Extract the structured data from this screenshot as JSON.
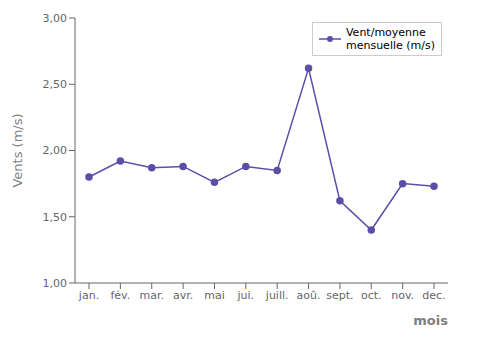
{
  "chart_data": {
    "type": "line",
    "categories": [
      "jan.",
      "fév.",
      "mar.",
      "avr.",
      "mai",
      "jui.",
      "juill.",
      "aoû.",
      "sept.",
      "oct.",
      "nov.",
      "dec."
    ],
    "series": [
      {
        "name": "Vent/moyenne\nmensuelle (m/s)",
        "color": "#5b4ea8",
        "marker": "o",
        "values": [
          1.8,
          1.92,
          1.87,
          1.88,
          1.76,
          1.88,
          1.85,
          2.62,
          1.62,
          1.4,
          1.75,
          1.73
        ]
      }
    ],
    "ylim": [
      1.0,
      3.0
    ],
    "yticks": [
      {
        "value": 1.0,
        "label": "1,00"
      },
      {
        "value": 1.5,
        "label": "1,50"
      },
      {
        "value": 2.0,
        "label": "2,00"
      },
      {
        "value": 2.5,
        "label": "2,50"
      },
      {
        "value": 3.0,
        "label": "3,00"
      }
    ],
    "y_label": "Vents (m/s)",
    "x_label": "mois",
    "legend": "upper right",
    "grid": false
  }
}
